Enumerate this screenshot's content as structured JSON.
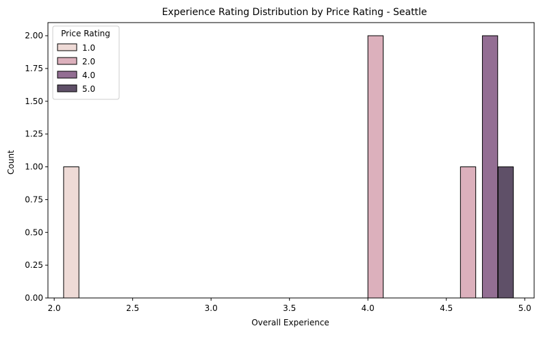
{
  "chart_data": {
    "type": "bar",
    "title": "Experience Rating Distribution by Price Rating - Seattle",
    "xlabel": "Overall Experience",
    "ylabel": "Count",
    "xlim": [
      1.96,
      5.06
    ],
    "ylim": [
      0,
      2.1
    ],
    "x_ticks": [
      "2.0",
      "2.5",
      "3.0",
      "3.5",
      "4.0",
      "4.5",
      "5.0"
    ],
    "y_ticks": [
      "0.00",
      "0.25",
      "0.50",
      "0.75",
      "1.00",
      "1.25",
      "1.50",
      "1.75",
      "2.00"
    ],
    "bin_width": 0.0975,
    "grid": false,
    "legend": {
      "title": "Price Rating",
      "placement": "top-left"
    },
    "series": [
      {
        "name": "1.0",
        "color": "#eedad6",
        "bars": [
          {
            "x": 2.06,
            "value": 1
          }
        ]
      },
      {
        "name": "2.0",
        "color": "#dcb0bc",
        "bars": [
          {
            "x": 4.0,
            "value": 2
          },
          {
            "x": 4.59,
            "value": 1
          }
        ]
      },
      {
        "name": "4.0",
        "color": "#936e93",
        "bars": [
          {
            "x": 4.73,
            "value": 2
          }
        ]
      },
      {
        "name": "5.0",
        "color": "#5f5068",
        "bars": [
          {
            "x": 4.83,
            "value": 1
          }
        ]
      }
    ]
  }
}
